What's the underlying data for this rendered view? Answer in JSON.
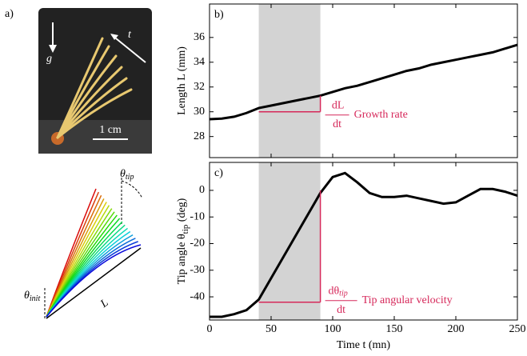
{
  "panel_a": {
    "label": "a)",
    "gravity": "g",
    "growth_axis": "t",
    "scale_bar": "1 cm",
    "theta_tip": "θ",
    "theta_tip_sub": "tip",
    "theta_init": "θ",
    "theta_init_sub": "init",
    "length": "L"
  },
  "chart_data": [
    {
      "type": "line",
      "panel_label": "b)",
      "y_label": "Length L (mm)",
      "x": [
        0,
        10,
        20,
        30,
        40,
        50,
        60,
        70,
        80,
        90,
        100,
        110,
        120,
        130,
        140,
        150,
        160,
        170,
        180,
        190,
        200,
        210,
        220,
        230,
        240,
        250
      ],
      "series": [
        {
          "color": "#000000",
          "values": [
            29.4,
            29.45,
            29.6,
            29.9,
            30.3,
            30.5,
            30.7,
            30.9,
            31.1,
            31.3,
            31.6,
            31.9,
            32.1,
            32.4,
            32.7,
            33.0,
            33.3,
            33.5,
            33.8,
            34.0,
            34.2,
            34.4,
            34.6,
            34.8,
            35.1,
            35.4
          ]
        }
      ],
      "xlim": [
        0,
        250
      ],
      "xticks": [
        0,
        50,
        100,
        150,
        200,
        250
      ],
      "ylim": [
        26.3,
        38.7
      ],
      "yticks": [
        28,
        30,
        32,
        34,
        36
      ],
      "shaded": [
        40,
        90
      ],
      "bracket": {
        "x_start": 40,
        "x_end": 90,
        "y_base": 30,
        "y_top": 31.3,
        "color": "#d6285a",
        "numerator": "dL",
        "denominator": "dt",
        "text": "Growth rate"
      }
    },
    {
      "type": "line",
      "panel_label": "c)",
      "y_label": "Tip angle θ",
      "y_label_sub": "tip",
      "y_label_unit": " (deg)",
      "x_label": "Time t (mn)",
      "x": [
        0,
        10,
        20,
        30,
        40,
        50,
        60,
        70,
        80,
        90,
        100,
        110,
        120,
        130,
        140,
        150,
        160,
        170,
        180,
        190,
        200,
        210,
        220,
        230,
        240,
        250
      ],
      "series": [
        {
          "color": "#000000",
          "values": [
            -47.5,
            -47.5,
            -46.5,
            -45,
            -41,
            -33,
            -25,
            -17,
            -9,
            -1,
            5,
            6.5,
            3,
            -1,
            -2.5,
            -2.5,
            -2,
            -3,
            -4,
            -5,
            -4.5,
            -2,
            0.5,
            0.5,
            -0.5,
            -2
          ]
        }
      ],
      "xlim": [
        0,
        250
      ],
      "xticks": [
        0,
        50,
        100,
        150,
        200,
        250
      ],
      "ylim": [
        -48.7,
        10.5
      ],
      "yticks": [
        0,
        -10,
        -20,
        -30,
        -40
      ],
      "shaded": [
        40,
        90
      ],
      "bracket": {
        "x_start": 40,
        "x_end": 90,
        "y_base": -42,
        "y_top": 0,
        "color": "#d6285a",
        "numerator": "dθ",
        "numerator_sub": "tip",
        "denominator": "dt",
        "text": "Tip angular velocity"
      }
    }
  ]
}
